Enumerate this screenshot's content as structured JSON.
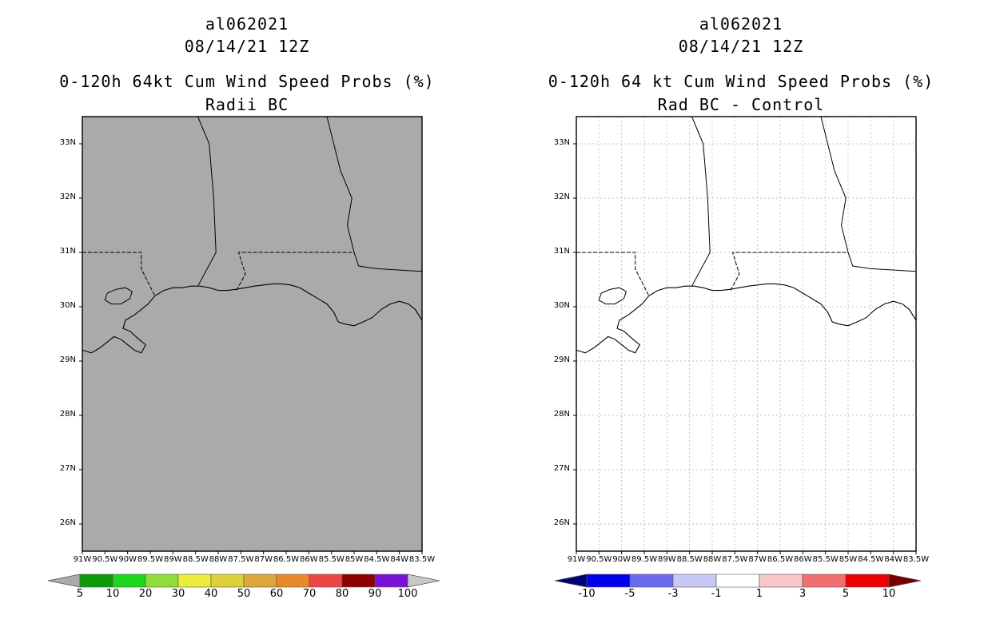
{
  "panels": [
    {
      "id": "left",
      "storm_id": "al062021",
      "datetime": "08/14/21 12Z",
      "title": "0-120h 64kt Cum Wind Speed Probs (%)",
      "subtitle": "Radii BC",
      "fill_color": "#aaaaaa",
      "gridlines": false,
      "colorbar": {
        "colors": [
          "#aaaaaa",
          "#0a9a0a",
          "#1fd61f",
          "#8fdc3b",
          "#ecec3a",
          "#dcd13a",
          "#dca63a",
          "#e88a2c",
          "#ec4545",
          "#8c0000",
          "#7a12d6",
          "#c8c8c8"
        ],
        "labels": [
          "5",
          "10",
          "20",
          "30",
          "40",
          "50",
          "60",
          "70",
          "80",
          "90",
          "100"
        ]
      }
    },
    {
      "id": "right",
      "storm_id": "al062021",
      "datetime": "08/14/21 12Z",
      "title": "0-120h 64 kt Cum Wind Speed Probs (%)",
      "subtitle": "Rad BC - Control",
      "fill_color": "#ffffff",
      "gridlines": true,
      "colorbar": {
        "colors": [
          "#00007a",
          "#0000f0",
          "#6a6af0",
          "#c8c8f4",
          "#ffffff",
          "#f8c8c8",
          "#f07070",
          "#f00000",
          "#7a0000"
        ],
        "labels": [
          "-10",
          "-5",
          "-3",
          "-1",
          "1",
          "3",
          "5",
          "10"
        ]
      }
    }
  ],
  "map": {
    "lat_labels": [
      "33N",
      "32N",
      "31N",
      "30N",
      "29N",
      "28N",
      "27N",
      "26N"
    ],
    "lat_values": [
      33,
      32,
      31,
      30,
      29,
      28,
      27,
      26
    ],
    "lat_range": [
      25.5,
      33.5
    ],
    "lon_labels": [
      "91W",
      "90.5W",
      "90W",
      "89.5W",
      "89W",
      "88.5W",
      "88W",
      "87.5W",
      "87W",
      "86.5W",
      "86W",
      "85.5W",
      "85W",
      "84.5W",
      "84W",
      "83.5W"
    ],
    "lon_values": [
      -91,
      -90.5,
      -90,
      -89.5,
      -89,
      -88.5,
      -88,
      -87.5,
      -87,
      -86.5,
      -86,
      -85.5,
      -85,
      -84.5,
      -84,
      -83.5
    ],
    "lon_range": [
      -91,
      -83.5
    ]
  }
}
